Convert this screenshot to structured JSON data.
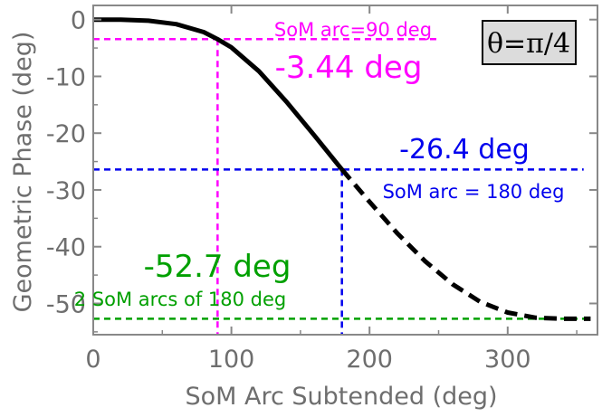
{
  "chart_data": {
    "type": "line",
    "xlabel": "SoM Arc Subtended (deg)",
    "ylabel": "Geometric Phase (deg)",
    "xlim": [
      0,
      365
    ],
    "ylim": [
      -55.5,
      2.5
    ],
    "x_ticks": [
      "0",
      "100",
      "200",
      "300"
    ],
    "x_tick_values": [
      0,
      100,
      200,
      300
    ],
    "y_ticks": [
      "0",
      "-10",
      "-20",
      "-30",
      "-40",
      "-50"
    ],
    "y_tick_values": [
      0,
      -10,
      -20,
      -30,
      -40,
      -50
    ],
    "grid": false,
    "inset_label": "θ=π/4",
    "series": [
      {
        "style": "solid",
        "color": "#000000",
        "points": [
          [
            0,
            0
          ],
          [
            20,
            -0.02
          ],
          [
            40,
            -0.2
          ],
          [
            60,
            -0.8
          ],
          [
            80,
            -2.2
          ],
          [
            90,
            -3.44
          ],
          [
            100,
            -4.9
          ],
          [
            120,
            -9.1
          ],
          [
            140,
            -14.5
          ],
          [
            160,
            -20.4
          ],
          [
            180,
            -26.4
          ]
        ]
      },
      {
        "style": "dashed",
        "color": "#000000",
        "points": [
          [
            180,
            -26.4
          ],
          [
            200,
            -32.1
          ],
          [
            220,
            -37.6
          ],
          [
            240,
            -42.5
          ],
          [
            260,
            -46.6
          ],
          [
            280,
            -49.7
          ],
          [
            300,
            -51.6
          ],
          [
            320,
            -52.5
          ],
          [
            340,
            -52.7
          ],
          [
            360,
            -52.7
          ]
        ]
      }
    ],
    "annotations": [
      {
        "name": "annotation-90",
        "color": "#ff00ff",
        "x": 90,
        "y": -3.44,
        "value_label": "-3.44 deg",
        "note": "SoM arc=90 deg",
        "hline_x": [
          0,
          250
        ]
      },
      {
        "name": "annotation-180",
        "color": "#0000ee",
        "x": 180,
        "y": -26.4,
        "value_label": "-26.4 deg",
        "note": "SoM arc = 180 deg",
        "hline_x": [
          0,
          355
        ]
      },
      {
        "name": "annotation-2x180",
        "color": "#00a000",
        "x": null,
        "y": -52.7,
        "value_label": "-52.7 deg",
        "note": "2 SoM arcs of 180 deg",
        "hline_x": [
          0,
          360
        ]
      }
    ]
  }
}
